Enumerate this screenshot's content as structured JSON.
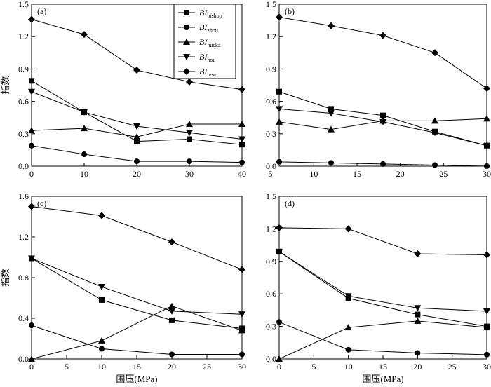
{
  "chart_data": [
    {
      "type": "line",
      "panel_label": "(a)",
      "ylabel": "指数",
      "xlabel": "",
      "xlim": [
        0,
        40
      ],
      "ylim": [
        0,
        1.5
      ],
      "xticks": [
        "0",
        "10",
        "20",
        "30",
        "40"
      ],
      "yticks": [
        "0.0",
        "0.3",
        "0.6",
        "0.9",
        "1.2",
        "1.5"
      ],
      "legend": "top-center",
      "series": [
        {
          "name": "BIbishop",
          "label": "BI",
          "sub": "bishop",
          "marker": "square",
          "x": [
            0,
            10,
            20,
            30,
            40
          ],
          "y": [
            0.79,
            0.5,
            0.23,
            0.25,
            0.2
          ]
        },
        {
          "name": "BIzhou",
          "label": "BI",
          "sub": "zhou",
          "marker": "circle",
          "x": [
            0,
            10,
            20,
            30,
            40
          ],
          "y": [
            0.19,
            0.11,
            0.045,
            0.045,
            0.035
          ]
        },
        {
          "name": "BIhucka",
          "label": "BI",
          "sub": "hucka",
          "marker": "triangle-up",
          "x": [
            0,
            10,
            20,
            30,
            40
          ],
          "y": [
            0.33,
            0.35,
            0.27,
            0.39,
            0.39
          ]
        },
        {
          "name": "BIhou",
          "label": "BI",
          "sub": "hou",
          "marker": "triangle-down",
          "x": [
            0,
            10,
            20,
            30,
            40
          ],
          "y": [
            0.69,
            0.5,
            0.37,
            0.31,
            0.25
          ]
        },
        {
          "name": "BInew",
          "label": "BI",
          "sub": "new",
          "marker": "diamond",
          "x": [
            0,
            10,
            20,
            30,
            40
          ],
          "y": [
            1.36,
            1.22,
            0.89,
            0.78,
            0.71
          ]
        }
      ]
    },
    {
      "type": "line",
      "panel_label": "(b)",
      "ylabel": "",
      "xlabel": "",
      "xlim": [
        6,
        30
      ],
      "ylim": [
        0,
        1.5
      ],
      "xticks": [
        "5",
        "10",
        "15",
        "20",
        "25",
        "30"
      ],
      "xtick_values": [
        5,
        10,
        15,
        20,
        25,
        30
      ],
      "yticks": [
        "0.0",
        "0.3",
        "0.6",
        "0.9",
        "1.2",
        "1.5"
      ],
      "series": [
        {
          "name": "BIbishop",
          "marker": "square",
          "x": [
            6,
            12,
            18,
            24,
            30
          ],
          "y": [
            0.69,
            0.53,
            0.47,
            0.32,
            0.19
          ]
        },
        {
          "name": "BIzhou",
          "marker": "circle",
          "x": [
            6,
            12,
            18,
            24,
            30
          ],
          "y": [
            0.04,
            0.03,
            0.02,
            0.01,
            0.0
          ]
        },
        {
          "name": "BIhucka",
          "marker": "triangle-up",
          "x": [
            6,
            12,
            18,
            24,
            30
          ],
          "y": [
            0.41,
            0.34,
            0.42,
            0.42,
            0.44
          ]
        },
        {
          "name": "BIhou",
          "marker": "triangle-down",
          "x": [
            6,
            12,
            18,
            24,
            30
          ],
          "y": [
            0.53,
            0.49,
            0.41,
            0.31,
            0.19
          ]
        },
        {
          "name": "BInew",
          "marker": "diamond",
          "x": [
            6,
            12,
            18,
            24,
            30
          ],
          "y": [
            1.38,
            1.3,
            1.21,
            1.05,
            0.72
          ]
        }
      ]
    },
    {
      "type": "line",
      "panel_label": "(c)",
      "ylabel": "指数",
      "xlabel": "围压(MPa)",
      "xlim": [
        0,
        30
      ],
      "ylim": [
        0,
        1.6
      ],
      "xticks": [
        "0",
        "5",
        "10",
        "15",
        "20",
        "25",
        "30"
      ],
      "yticks": [
        "0.0",
        "0.4",
        "0.8",
        "1.2",
        "1.6"
      ],
      "series": [
        {
          "name": "BIbishop",
          "marker": "square",
          "x": [
            0,
            10,
            20,
            30
          ],
          "y": [
            0.99,
            0.58,
            0.38,
            0.3
          ]
        },
        {
          "name": "BIzhou",
          "marker": "circle",
          "x": [
            0,
            10,
            20,
            30
          ],
          "y": [
            0.33,
            0.1,
            0.045,
            0.045
          ]
        },
        {
          "name": "BIhucka",
          "marker": "triangle-up",
          "x": [
            0,
            10,
            20,
            30
          ],
          "y": [
            0.0,
            0.18,
            0.52,
            0.28
          ]
        },
        {
          "name": "BIhou",
          "marker": "triangle-down",
          "x": [
            0,
            10,
            20,
            30
          ],
          "y": [
            0.99,
            0.71,
            0.47,
            0.44
          ]
        },
        {
          "name": "BInew",
          "marker": "diamond",
          "x": [
            0,
            10,
            20,
            30
          ],
          "y": [
            1.5,
            1.41,
            1.15,
            0.88
          ]
        }
      ]
    },
    {
      "type": "line",
      "panel_label": "(d)",
      "ylabel": "",
      "xlabel": "围压(MPa)",
      "xlim": [
        0,
        30
      ],
      "ylim": [
        0,
        1.5
      ],
      "xticks": [
        "0",
        "5",
        "10",
        "15",
        "20",
        "25",
        "30"
      ],
      "yticks": [
        "0.0",
        "0.3",
        "0.6",
        "0.9",
        "1.2",
        "1.5"
      ],
      "series": [
        {
          "name": "BIbishop",
          "marker": "square",
          "x": [
            0,
            10,
            20,
            30
          ],
          "y": [
            0.99,
            0.56,
            0.41,
            0.3
          ]
        },
        {
          "name": "BIzhou",
          "marker": "circle",
          "x": [
            0,
            10,
            20,
            30
          ],
          "y": [
            0.34,
            0.085,
            0.055,
            0.04
          ]
        },
        {
          "name": "BIhucka",
          "marker": "triangle-up",
          "x": [
            0,
            10,
            20,
            30
          ],
          "y": [
            0.0,
            0.29,
            0.35,
            0.29
          ]
        },
        {
          "name": "BIhou",
          "marker": "triangle-down",
          "x": [
            0,
            10,
            20,
            30
          ],
          "y": [
            0.99,
            0.58,
            0.47,
            0.44
          ]
        },
        {
          "name": "BInew",
          "marker": "diamond",
          "x": [
            0,
            10,
            20,
            30
          ],
          "y": [
            1.21,
            1.2,
            0.97,
            0.96
          ]
        }
      ]
    }
  ]
}
